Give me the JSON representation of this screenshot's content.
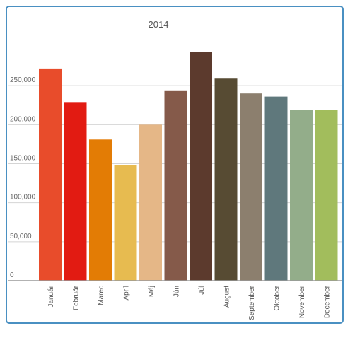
{
  "chart_data": {
    "type": "bar",
    "title": "2014",
    "xlabel": "",
    "ylabel": "",
    "categories": [
      "Január",
      "Február",
      "Marec",
      "Apríl",
      "Máj",
      "Jún",
      "Júl",
      "August",
      "September",
      "Október",
      "November",
      "December"
    ],
    "values": [
      272000,
      229000,
      181000,
      148000,
      200000,
      244000,
      293000,
      259000,
      240000,
      236000,
      219000,
      219000
    ],
    "colors": [
      "#e84c2b",
      "#e21b12",
      "#e37c05",
      "#e7bb50",
      "#e5b787",
      "#855a4a",
      "#5c3a2d",
      "#574b33",
      "#8c7f6e",
      "#5f787c",
      "#93ad8a",
      "#a2bd5c"
    ],
    "ylim": [
      0,
      300000
    ],
    "yticks": [
      0,
      50000,
      100000,
      150000,
      200000,
      250000
    ],
    "ytick_labels": [
      "0",
      "50,000",
      "100,000",
      "150,000",
      "200,000",
      "250,000"
    ],
    "grid": true,
    "legend": "none"
  }
}
